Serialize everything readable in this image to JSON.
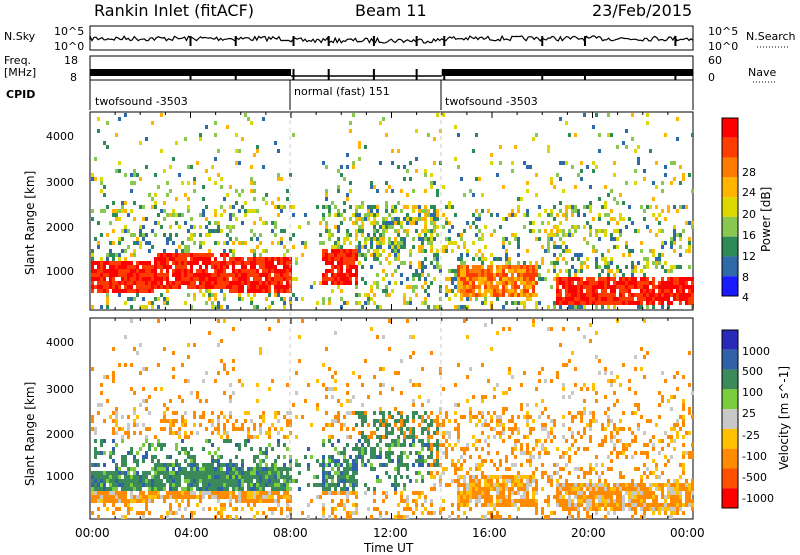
{
  "header": {
    "station": "Rankin Inlet (fitACF)",
    "beam": "Beam 11",
    "date": "23/Feb/2015"
  },
  "top_panels": {
    "nsky_label": "N.Sky",
    "nsky_ticks": [
      "10^5",
      "10^0"
    ],
    "nsearch_label": "N.Search",
    "nsearch_ticks": [
      "10^5",
      "10^0"
    ],
    "freq_label": "Freq.",
    "freq_unit": "[MHz]",
    "freq_ticks": [
      "18",
      "8"
    ],
    "nave_label": "Nave",
    "nave_ticks": [
      "60",
      "0"
    ],
    "cpid_label": "CPID",
    "cpid_segments": [
      {
        "label": "twofsound -3503",
        "start": 0,
        "end": 8
      },
      {
        "label": "normal (fast) 151",
        "start": 8,
        "end": 14
      },
      {
        "label": "twofsound -3503",
        "start": 14,
        "end": 24
      }
    ]
  },
  "x_axis": {
    "label": "Time UT",
    "ticks": [
      "00:00",
      "04:00",
      "08:00",
      "12:00",
      "16:00",
      "20:00",
      "00:00"
    ],
    "range_hours": [
      0,
      24
    ]
  },
  "chart_data": [
    {
      "type": "heatmap",
      "name": "power",
      "ylabel": "Slant Range [km]",
      "yticks": [
        "1000",
        "2000",
        "3000",
        "4000"
      ],
      "ylim": [
        200,
        4600
      ],
      "colorbar_label": "Power [dB]",
      "colorbar_ticks": [
        "28",
        "24",
        "20",
        "16",
        "12",
        "8",
        "4"
      ],
      "colorbar_colors": [
        "#ff0000",
        "#ff3c00",
        "#ff7a00",
        "#ffb400",
        "#ddd800",
        "#88c850",
        "#2e8b57",
        "#2f6aa8",
        "#1a1aff"
      ]
    },
    {
      "type": "heatmap",
      "name": "velocity",
      "ylabel": "Slant Range [km]",
      "yticks": [
        "1000",
        "2000",
        "3000",
        "4000"
      ],
      "ylim": [
        200,
        4600
      ],
      "colorbar_label": "Velocity [m s^-1]",
      "colorbar_ticks": [
        "1000",
        "500",
        "100",
        "25",
        "-25",
        "-100",
        "-500",
        "-1000"
      ],
      "colorbar_colors": [
        "#2a2ab8",
        "#2f62a8",
        "#3a8a5a",
        "#7acc3a",
        "#c8c8c8",
        "#ffc000",
        "#ff8c00",
        "#ff5000",
        "#ff0000"
      ]
    }
  ],
  "data_summary": {
    "nave_gaps_hours": [
      4,
      5.8,
      8.1,
      9.5,
      11.3,
      13,
      14.1,
      18,
      19.7,
      23.3
    ],
    "power_bands": [
      {
        "t0": 0,
        "t1": 2.5,
        "r0": 600,
        "r1": 1300,
        "level": "high"
      },
      {
        "t0": 2.5,
        "t1": 5.5,
        "r0": 700,
        "r1": 1500,
        "level": "high"
      },
      {
        "t0": 5.5,
        "t1": 8.0,
        "r0": 600,
        "r1": 1400,
        "level": "high"
      },
      {
        "t0": 9.2,
        "t1": 10.6,
        "r0": 800,
        "r1": 1600,
        "level": "high"
      },
      {
        "t0": 14.5,
        "t1": 17.8,
        "r0": 500,
        "r1": 1200,
        "level": "mid"
      },
      {
        "t0": 18.5,
        "t1": 24,
        "r0": 400,
        "r1": 1000,
        "level": "high"
      }
    ]
  }
}
